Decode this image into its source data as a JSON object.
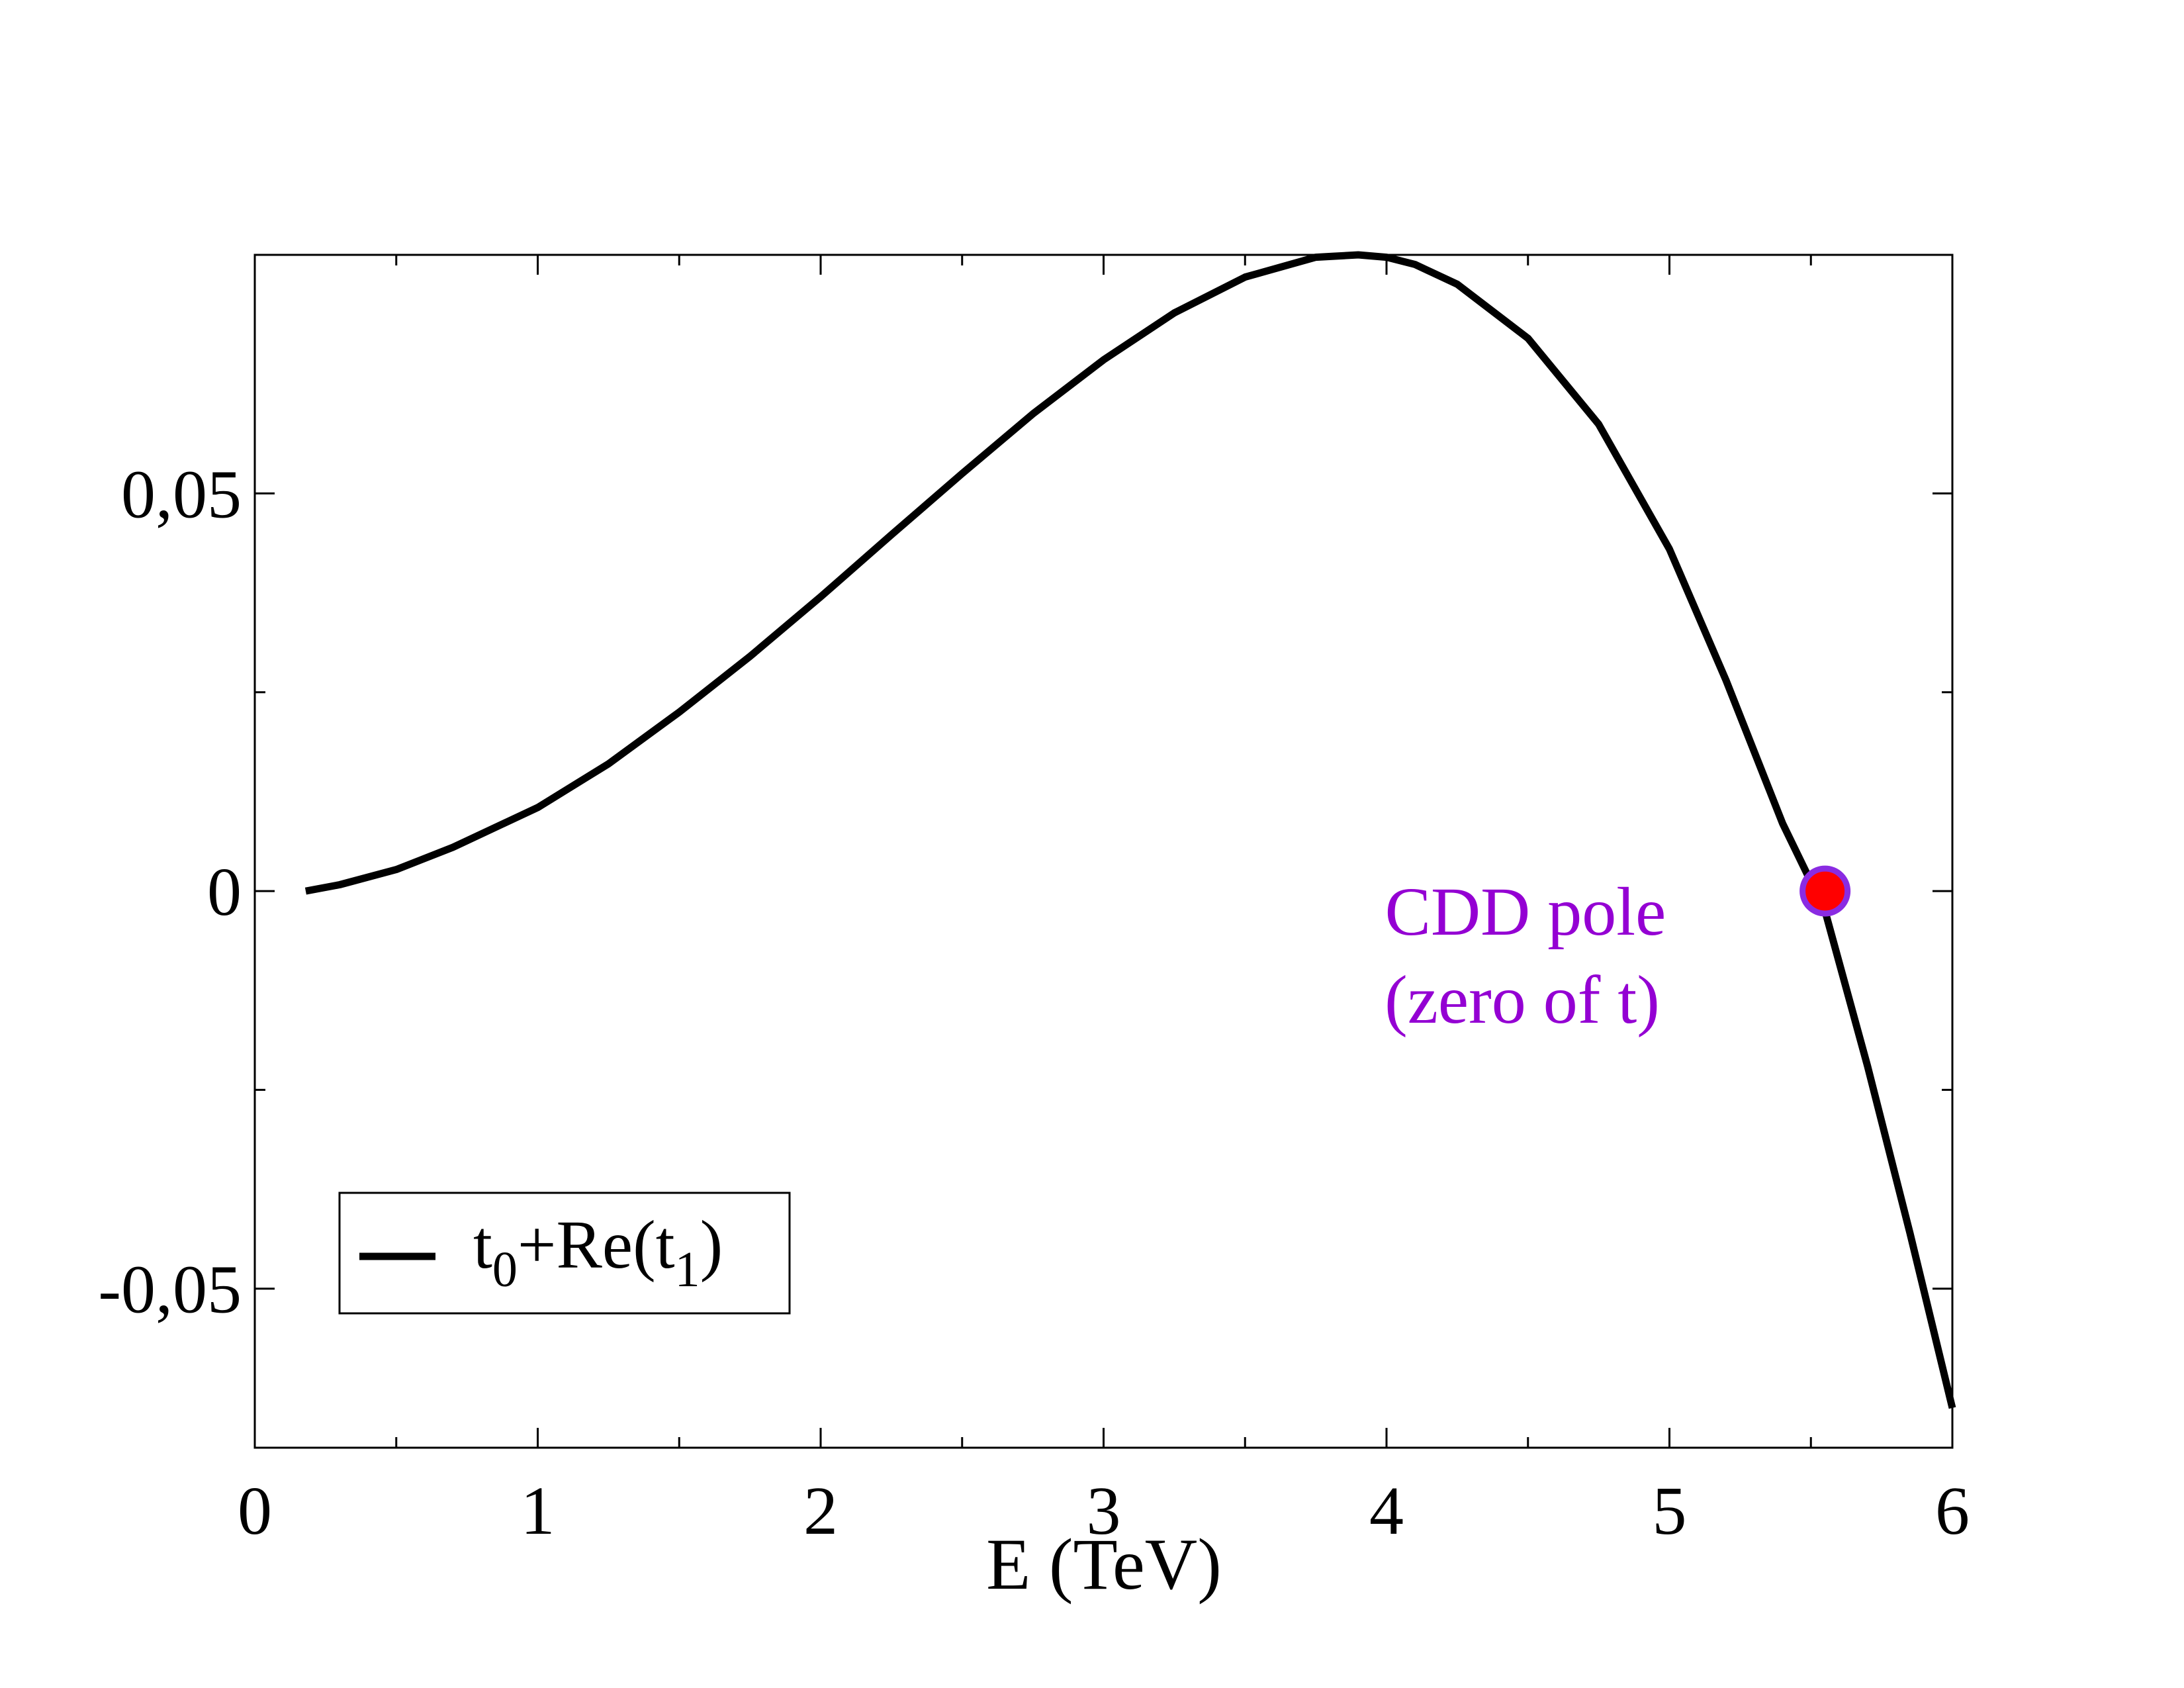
{
  "chart_data": {
    "type": "line",
    "title": "",
    "xlabel": "E (TeV)",
    "ylabel": "",
    "xlim": [
      0,
      6
    ],
    "ylim": [
      -0.07,
      0.08
    ],
    "x_major_ticks": [
      0,
      1,
      2,
      3,
      4,
      5,
      6
    ],
    "x_tick_labels": [
      "0",
      "1",
      "2",
      "3",
      "4",
      "5",
      "6"
    ],
    "x_minor_ticks": [
      0.5,
      1.5,
      2.5,
      3.5,
      4.5,
      5.5
    ],
    "y_major_ticks": [
      -0.05,
      0,
      0.05
    ],
    "y_tick_labels": [
      "-0,05",
      "0",
      "0,05"
    ],
    "y_minor_ticks": [
      -0.025,
      0.025
    ],
    "grid": false,
    "series": [
      {
        "name": "t0+Re(t1)",
        "color": "#000000",
        "x": [
          0.18,
          0.3,
          0.5,
          0.7,
          1.0,
          1.25,
          1.5,
          1.75,
          2.0,
          2.25,
          2.5,
          2.75,
          3.0,
          3.25,
          3.5,
          3.75,
          3.9,
          4.0,
          4.1,
          4.25,
          4.5,
          4.75,
          5.0,
          5.2,
          5.4,
          5.55,
          5.7,
          5.85,
          6.0
        ],
        "y": [
          0.0,
          0.0008,
          0.0027,
          0.0055,
          0.0105,
          0.016,
          0.0225,
          0.0295,
          0.037,
          0.0448,
          0.0525,
          0.06,
          0.0668,
          0.0727,
          0.0772,
          0.0797,
          0.08,
          0.0797,
          0.0788,
          0.0763,
          0.0695,
          0.0587,
          0.043,
          0.0265,
          0.0085,
          -0.0025,
          -0.022,
          -0.043,
          -0.065
        ]
      }
    ],
    "legend": {
      "position": "bottom-left",
      "label_main": "t",
      "label_sub0": "0",
      "label_mid": "+Re(t",
      "label_sub1": "1",
      "label_end": ")"
    },
    "markers": [
      {
        "name": "CDD pole",
        "x": 5.55,
        "y": 0.0,
        "fill": "#ff0000",
        "stroke": "#8a2be2"
      }
    ],
    "annotations": {
      "line1": "CDD pole",
      "line2": "(zero of t)",
      "color": "#9400d3"
    }
  }
}
